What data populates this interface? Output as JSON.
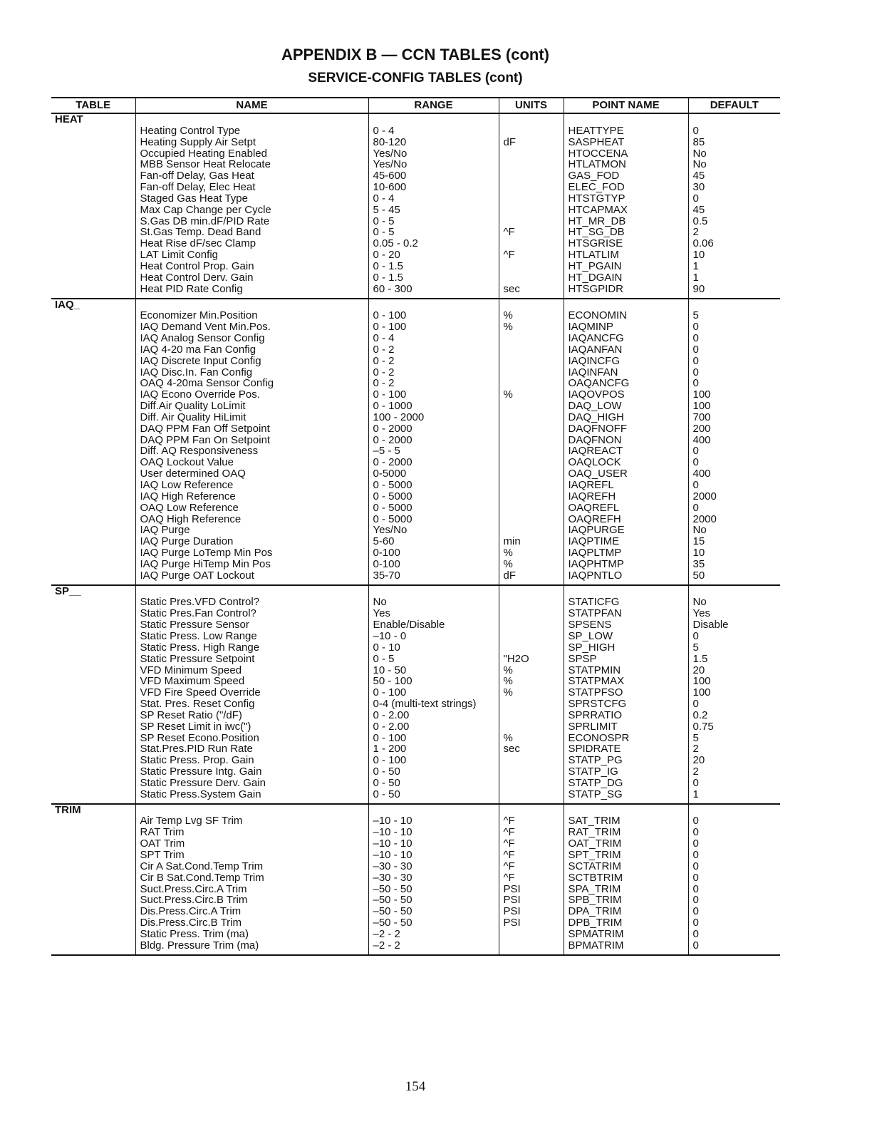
{
  "title": "APPENDIX B — CCN TABLES (cont)",
  "subtitle": "SERVICE-CONFIG TABLES (cont)",
  "columns": [
    "TABLE",
    "NAME",
    "RANGE",
    "UNITS",
    "POINT NAME",
    "DEFAULT"
  ],
  "sections": [
    {
      "table": "HEAT",
      "rows": [
        [
          "Heating Control Type",
          "0 - 4",
          "",
          "HEATTYPE",
          "0"
        ],
        [
          "Heating Supply Air Setpt",
          "80-120",
          "dF",
          "SASPHEAT",
          "85"
        ],
        [
          "Occupied Heating Enabled",
          "Yes/No",
          "",
          "HTOCCENA",
          "No"
        ],
        [
          "MBB Sensor Heat Relocate",
          "Yes/No",
          "",
          "HTLATMON",
          "No"
        ],
        [
          "Fan-off Delay, Gas Heat",
          "45-600",
          "",
          "GAS_FOD",
          "45"
        ],
        [
          "Fan-off Delay, Elec Heat",
          "10-600",
          "",
          "ELEC_FOD",
          "30"
        ],
        [
          "Staged Gas Heat Type",
          "0 - 4",
          "",
          "HTSTGTYP",
          "0"
        ],
        [
          "Max Cap Change per Cycle",
          "5 - 45",
          "",
          "HTCAPMAX",
          "45"
        ],
        [
          "S.Gas DB min.dF/PID Rate",
          "0 - 5",
          "",
          "HT_MR_DB",
          "0.5"
        ],
        [
          "St.Gas Temp. Dead Band",
          "0 - 5",
          "^F",
          "HT_SG_DB",
          "2"
        ],
        [
          "Heat Rise dF/sec Clamp",
          "0.05 - 0.2",
          "",
          "HTSGRISE",
          "0.06"
        ],
        [
          "LAT Limit Config",
          "0 - 20",
          "^F",
          "HTLATLIM",
          "10"
        ],
        [
          "Heat Control Prop. Gain",
          "0 - 1.5",
          "",
          "HT_PGAIN",
          "1"
        ],
        [
          "Heat Control Derv. Gain",
          "0 - 1.5",
          "",
          "HT_DGAIN",
          "1"
        ],
        [
          "Heat PID Rate Config",
          "60 - 300",
          "sec",
          "HTSGPIDR",
          "90"
        ]
      ]
    },
    {
      "table": "IAQ_",
      "rows": [
        [
          "Economizer Min.Position",
          "0 - 100",
          "%",
          "ECONOMIN",
          "5"
        ],
        [
          "IAQ Demand Vent Min.Pos.",
          "0 - 100",
          "%",
          "IAQMINP",
          "0"
        ],
        [
          "IAQ Analog Sensor Config",
          "0 - 4",
          "",
          "IAQANCFG",
          "0"
        ],
        [
          "IAQ 4-20 ma Fan Config",
          "0 - 2",
          "",
          "IAQANFAN",
          "0"
        ],
        [
          "IAQ Discrete Input Config",
          "0 - 2",
          "",
          "IAQINCFG",
          "0"
        ],
        [
          "IAQ Disc.In. Fan Config",
          "0 - 2",
          "",
          "IAQINFAN",
          "0"
        ],
        [
          "OAQ 4-20ma Sensor Config",
          "0 - 2",
          "",
          "OAQANCFG",
          "0"
        ],
        [
          "IAQ Econo Override Pos.",
          "0 - 100",
          "%",
          "IAQOVPOS",
          "100"
        ],
        [
          "Diff.Air Quality LoLimit",
          "0 - 1000",
          "",
          "DAQ_LOW",
          "100"
        ],
        [
          "Diff. Air Quality HiLimit",
          "100 - 2000",
          "",
          "DAQ_HIGH",
          "700"
        ],
        [
          "DAQ PPM Fan Off Setpoint",
          "0 - 2000",
          "",
          "DAQFNOFF",
          "200"
        ],
        [
          "DAQ PPM Fan On Setpoint",
          "0 - 2000",
          "",
          "DAQFNON",
          "400"
        ],
        [
          "Diff. AQ Responsiveness",
          "–5 - 5",
          "",
          "IAQREACT",
          "0"
        ],
        [
          "OAQ Lockout Value",
          "0 - 2000",
          "",
          "OAQLOCK",
          "0"
        ],
        [
          "User determined OAQ",
          "0-5000",
          "",
          "OAQ_USER",
          "400"
        ],
        [
          "IAQ Low Reference",
          "0 - 5000",
          "",
          "IAQREFL",
          "0"
        ],
        [
          "IAQ High Reference",
          "0 - 5000",
          "",
          "IAQREFH",
          "2000"
        ],
        [
          "OAQ Low Reference",
          "0 - 5000",
          "",
          "OAQREFL",
          "0"
        ],
        [
          "OAQ High Reference",
          "0 - 5000",
          "",
          "OAQREFH",
          "2000"
        ],
        [
          "IAQ Purge",
          "Yes/No",
          "",
          "IAQPURGE",
          "No"
        ],
        [
          "IAQ Purge Duration",
          "5-60",
          "min",
          "IAQPTIME",
          "15"
        ],
        [
          "IAQ Purge LoTemp Min Pos",
          "0-100",
          "%",
          "IAQPLTMP",
          "10"
        ],
        [
          "IAQ Purge HiTemp Min Pos",
          "0-100",
          "%",
          "IAQPHTMP",
          "35"
        ],
        [
          "IAQ Purge OAT Lockout",
          "35-70",
          "dF",
          "IAQPNTLO",
          "50"
        ]
      ]
    },
    {
      "table": "SP__",
      "rows": [
        [
          "Static Pres.VFD Control?",
          "No",
          "",
          "STATICFG",
          "No"
        ],
        [
          "Static Pres.Fan Control?",
          "Yes",
          "",
          "STATPFAN",
          "Yes"
        ],
        [
          "Static Pressure Sensor",
          "Enable/Disable",
          "",
          "SPSENS",
          "Disable"
        ],
        [
          "Static Press. Low Range",
          "–10 - 0",
          "",
          "SP_LOW",
          "0"
        ],
        [
          "Static Press. High Range",
          "0 - 10",
          "",
          "SP_HIGH",
          "5"
        ],
        [
          "Static Pressure Setpoint",
          "0 - 5",
          "\"H2O",
          "SPSP",
          "1.5"
        ],
        [
          "VFD Minimum Speed",
          "10 - 50",
          "%",
          "STATPMIN",
          "20"
        ],
        [
          "VFD Maximum Speed",
          "50 - 100",
          "%",
          "STATPMAX",
          "100"
        ],
        [
          "VFD Fire Speed Override",
          "0 - 100",
          "%",
          "STATPFSO",
          "100"
        ],
        [
          "Stat. Pres. Reset Config",
          "0-4 (multi-text strings)",
          "",
          "SPRSTCFG",
          "0"
        ],
        [
          "SP Reset Ratio (\"/dF)",
          "0 - 2.00",
          "",
          "SPRRATIO",
          "0.2"
        ],
        [
          "SP Reset Limit in iwc(\")",
          "0 - 2.00",
          "",
          "SPRLIMIT",
          "0.75"
        ],
        [
          "SP Reset Econo.Position",
          "0 - 100",
          "%",
          "ECONOSPR",
          "5"
        ],
        [
          "Stat.Pres.PID Run Rate",
          "1 - 200",
          "sec",
          "SPIDRATE",
          "2"
        ],
        [
          "Static Press. Prop. Gain",
          "0 - 100",
          "",
          "STATP_PG",
          "20"
        ],
        [
          "Static Pressure Intg. Gain",
          "0 - 50",
          "",
          "STATP_IG",
          "2"
        ],
        [
          "Static Pressure Derv. Gain",
          "0 - 50",
          "",
          "STATP_DG",
          "0"
        ],
        [
          "Static Press.System Gain",
          "0 - 50",
          "",
          "STATP_SG",
          "1"
        ]
      ]
    },
    {
      "table": "TRIM",
      "rows": [
        [
          "Air Temp Lvg SF Trim",
          "–10 - 10",
          "^F",
          "SAT_TRIM",
          "0"
        ],
        [
          "RAT Trim",
          "–10 - 10",
          "^F",
          "RAT_TRIM",
          "0"
        ],
        [
          "OAT Trim",
          "–10 - 10",
          "^F",
          "OAT_TRIM",
          "0"
        ],
        [
          "SPT Trim",
          "–10 - 10",
          "^F",
          "SPT_TRIM",
          "0"
        ],
        [
          "Cir A Sat.Cond.Temp Trim",
          "–30 - 30",
          "^F",
          "SCTATRIM",
          "0"
        ],
        [
          "Cir B Sat.Cond.Temp Trim",
          "–30 - 30",
          "^F",
          "SCTBTRIM",
          "0"
        ],
        [
          "Suct.Press.Circ.A Trim",
          "–50 - 50",
          "PSI",
          "SPA_TRIM",
          "0"
        ],
        [
          "Suct.Press.Circ.B Trim",
          "–50 - 50",
          "PSI",
          "SPB_TRIM",
          "0"
        ],
        [
          "Dis.Press.Circ.A Trim",
          "–50 - 50",
          "PSI",
          "DPA_TRIM",
          "0"
        ],
        [
          "Dis.Press.Circ.B Trim",
          "–50 - 50",
          "PSI",
          "DPB_TRIM",
          "0"
        ],
        [
          "Static Press. Trim (ma)",
          "–2 - 2",
          "",
          "SPMATRIM",
          "0"
        ],
        [
          "Bldg. Pressure Trim (ma)",
          "–2 - 2",
          "",
          "BPMATRIM",
          "0"
        ]
      ]
    }
  ],
  "page_number": "154"
}
